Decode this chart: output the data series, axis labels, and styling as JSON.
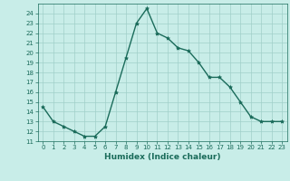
{
  "xlabel": "Humidex (Indice chaleur)",
  "ylabel": "",
  "x": [
    0,
    1,
    2,
    3,
    4,
    5,
    6,
    7,
    8,
    9,
    10,
    11,
    12,
    13,
    14,
    15,
    16,
    17,
    18,
    19,
    20,
    21,
    22,
    23
  ],
  "y": [
    14.5,
    13.0,
    12.5,
    12.0,
    11.5,
    11.5,
    12.5,
    16.0,
    19.5,
    23.0,
    24.5,
    22.0,
    21.5,
    20.5,
    20.2,
    19.0,
    17.5,
    17.5,
    16.5,
    15.0,
    13.5,
    13.0,
    13.0,
    13.0
  ],
  "line_color": "#1a6b5a",
  "marker": "*",
  "marker_size": 3,
  "bg_color": "#c8ede8",
  "grid_color": "#a0cfc9",
  "ylim": [
    11,
    25
  ],
  "xlim": [
    -0.5,
    23.5
  ],
  "yticks": [
    11,
    12,
    13,
    14,
    15,
    16,
    17,
    18,
    19,
    20,
    21,
    22,
    23,
    24
  ],
  "xticks": [
    0,
    1,
    2,
    3,
    4,
    5,
    6,
    7,
    8,
    9,
    10,
    11,
    12,
    13,
    14,
    15,
    16,
    17,
    18,
    19,
    20,
    21,
    22,
    23
  ],
  "tick_fontsize": 5,
  "label_fontsize": 6.5,
  "linewidth": 1.0
}
